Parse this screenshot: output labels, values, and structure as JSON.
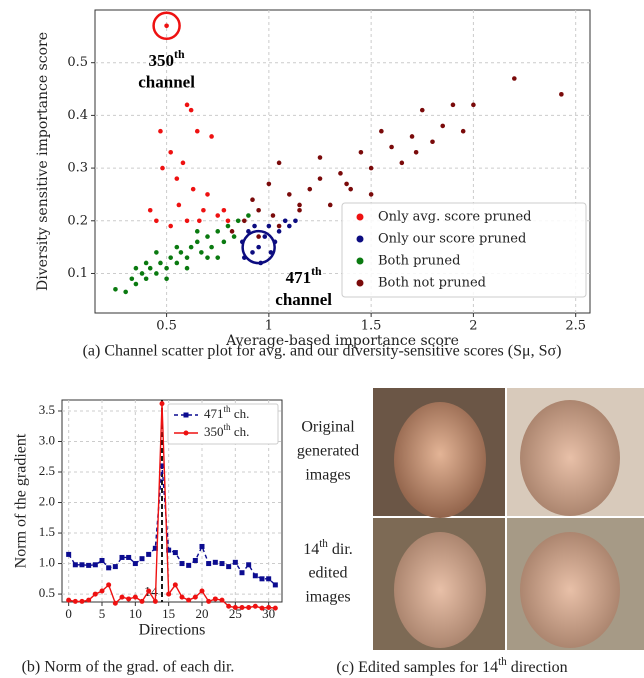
{
  "chart_data": [
    {
      "type": "scatter",
      "x_label": "Average-based importance score",
      "y_label": "Diversity sensitive importance score",
      "xlim": [
        0.15,
        2.57
      ],
      "ylim": [
        0.025,
        0.6
      ],
      "xticks": [
        0.5,
        1.0,
        1.5,
        2.0,
        2.5
      ],
      "yticks": [
        0.1,
        0.2,
        0.3,
        0.4,
        0.5
      ],
      "grid": true,
      "legend": "lower right",
      "series": [
        {
          "name": "Only avg. score pruned",
          "color": "#ee1111",
          "x": [
            0.5,
            0.47,
            0.52,
            0.6,
            0.62,
            0.65,
            0.58,
            0.55,
            0.63,
            0.7,
            0.72,
            0.68,
            0.45,
            0.52,
            0.6,
            0.75,
            0.8,
            0.48,
            0.56,
            0.66,
            0.42,
            0.78
          ],
          "values": [
            0.57,
            0.37,
            0.33,
            0.42,
            0.41,
            0.37,
            0.31,
            0.28,
            0.26,
            0.25,
            0.36,
            0.22,
            0.2,
            0.19,
            0.2,
            0.21,
            0.2,
            0.3,
            0.23,
            0.2,
            0.22,
            0.22
          ]
        },
        {
          "name": "Only our score pruned",
          "color": "#0c0c80",
          "x": [
            0.87,
            0.9,
            0.92,
            0.95,
            0.98,
            1.0,
            1.03,
            1.05,
            1.08,
            0.88,
            0.96,
            1.1,
            1.13,
            0.93,
            1.01
          ],
          "values": [
            0.16,
            0.18,
            0.14,
            0.15,
            0.17,
            0.19,
            0.16,
            0.18,
            0.2,
            0.13,
            0.12,
            0.19,
            0.2,
            0.19,
            0.14
          ]
        },
        {
          "name": "Both pruned",
          "color": "#0a7a10",
          "x": [
            0.25,
            0.3,
            0.33,
            0.35,
            0.38,
            0.4,
            0.42,
            0.45,
            0.47,
            0.5,
            0.52,
            0.55,
            0.57,
            0.6,
            0.62,
            0.65,
            0.67,
            0.7,
            0.72,
            0.75,
            0.78,
            0.8,
            0.83,
            0.85,
            0.5,
            0.6,
            0.7,
            0.4,
            0.55,
            0.65,
            0.75,
            0.9,
            0.45,
            0.35
          ],
          "values": [
            0.07,
            0.065,
            0.09,
            0.08,
            0.1,
            0.09,
            0.11,
            0.1,
            0.12,
            0.11,
            0.13,
            0.12,
            0.14,
            0.13,
            0.15,
            0.16,
            0.14,
            0.17,
            0.15,
            0.18,
            0.16,
            0.19,
            0.17,
            0.2,
            0.09,
            0.11,
            0.13,
            0.12,
            0.15,
            0.18,
            0.13,
            0.21,
            0.14,
            0.11
          ]
        },
        {
          "name": "Both not pruned",
          "color": "#7a0a0a",
          "x": [
            0.82,
            0.88,
            0.92,
            0.95,
            1.0,
            1.02,
            1.05,
            1.1,
            1.15,
            1.2,
            1.25,
            1.3,
            1.35,
            1.4,
            1.45,
            1.5,
            1.55,
            1.6,
            1.65,
            1.7,
            1.75,
            1.8,
            1.85,
            1.9,
            1.95,
            2.0,
            2.2,
            2.43,
            1.05,
            1.25,
            1.5,
            0.95,
            1.15,
            1.38,
            1.72
          ],
          "values": [
            0.18,
            0.2,
            0.24,
            0.22,
            0.27,
            0.21,
            0.31,
            0.25,
            0.23,
            0.26,
            0.28,
            0.23,
            0.29,
            0.26,
            0.33,
            0.3,
            0.37,
            0.34,
            0.31,
            0.36,
            0.41,
            0.35,
            0.38,
            0.42,
            0.37,
            0.42,
            0.47,
            0.44,
            0.19,
            0.32,
            0.25,
            0.17,
            0.22,
            0.27,
            0.33
          ]
        }
      ],
      "annotations": [
        {
          "text": "350th",
          "line2": "channel",
          "x": 0.5,
          "y": 0.57,
          "color": "#ee1111"
        },
        {
          "text": "471th",
          "line2": "channel",
          "x": 0.95,
          "y": 0.15,
          "color": "#0c0c80"
        }
      ],
      "caption": "(a) Channel scatter plot for avg. and our diversity-sensitive scores (Sμ, Sσ)"
    },
    {
      "type": "line",
      "x_label": "Directions",
      "y_label": "Norm of the gradient",
      "xlim": [
        -1,
        32
      ],
      "ylim": [
        0.37,
        3.68
      ],
      "xticks": [
        0,
        5,
        10,
        15,
        20,
        25,
        30
      ],
      "yticks": [
        0.5,
        1.0,
        1.5,
        2.0,
        2.5,
        3.0,
        3.5
      ],
      "grid": true,
      "legend": "upper right",
      "vline": 14,
      "x": [
        0,
        1,
        2,
        3,
        4,
        5,
        6,
        7,
        8,
        9,
        10,
        11,
        12,
        13,
        14,
        15,
        16,
        17,
        18,
        19,
        20,
        21,
        22,
        23,
        24,
        25,
        26,
        27,
        28,
        29,
        30,
        31
      ],
      "series": [
        {
          "name": "471th ch.",
          "color": "#0c0c90",
          "dash": true,
          "marker": "square",
          "values": [
            1.15,
            0.98,
            0.98,
            0.97,
            0.98,
            1.05,
            0.93,
            0.95,
            1.1,
            1.1,
            1.0,
            1.08,
            1.15,
            1.25,
            2.6,
            1.22,
            1.18,
            1.0,
            0.97,
            1.05,
            1.28,
            1.0,
            1.02,
            1.0,
            0.95,
            1.02,
            0.85,
            0.98,
            0.8,
            0.75,
            0.75,
            0.65
          ]
        },
        {
          "name": "350th ch.",
          "color": "#ee1111",
          "dash": false,
          "marker": "circle",
          "values": [
            0.4,
            0.38,
            0.38,
            0.4,
            0.5,
            0.55,
            0.65,
            0.35,
            0.45,
            0.42,
            0.45,
            0.38,
            0.55,
            0.38,
            3.62,
            0.5,
            0.65,
            0.45,
            0.4,
            0.45,
            0.55,
            0.38,
            0.42,
            0.4,
            0.3,
            0.28,
            0.28,
            0.28,
            0.3,
            0.27,
            0.28,
            0.27
          ]
        }
      ],
      "caption": "(b) Norm of the grad. of each dir."
    }
  ],
  "panel_c": {
    "rows": [
      {
        "label": [
          "Original",
          "generated",
          "images"
        ]
      },
      {
        "label": [
          "14th dir.",
          "edited",
          "images"
        ]
      }
    ],
    "caption": "(c) Edited samples for 14th direction"
  }
}
